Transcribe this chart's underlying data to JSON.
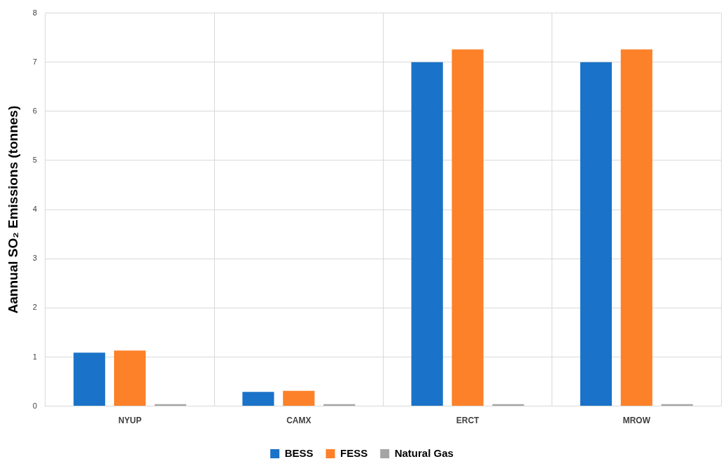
{
  "chart_data": {
    "type": "bar",
    "ylabel": "Aannual SO₂ Emissions (tonnes)",
    "categories": [
      "NYUP",
      "CAMX",
      "ERCT",
      "MROW"
    ],
    "series": [
      {
        "name": "BESS",
        "color": "#1a73c8",
        "values": [
          1.09,
          0.29,
          7.0,
          7.0
        ]
      },
      {
        "name": "FESS",
        "color": "#fd8128",
        "values": [
          1.13,
          0.31,
          7.26,
          7.26
        ]
      },
      {
        "name": "Natural Gas",
        "color": "#a5a5a5",
        "values": [
          0.04,
          0.04,
          0.04,
          0.04
        ]
      }
    ],
    "ylim": [
      0,
      8
    ],
    "yticks": [
      0,
      1,
      2,
      3,
      4,
      5,
      6,
      7,
      8
    ],
    "grid": true,
    "legend": "bottom"
  }
}
